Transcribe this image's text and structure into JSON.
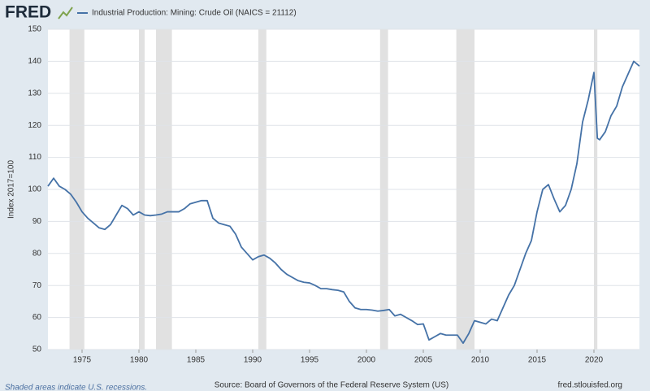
{
  "chart_data": {
    "type": "line",
    "logo": "FRED",
    "ylabel": "Index 2017=100",
    "note": "Shaded areas indicate U.S. recessions.",
    "source": "Source: Board of Governors of the Federal Reserve System (US)",
    "site": "fred.stlouisfed.org",
    "xlim": [
      1972,
      2024
    ],
    "xticks": [
      1975,
      1980,
      1985,
      1990,
      1995,
      2000,
      2005,
      2010,
      2015,
      2020
    ],
    "ylim": [
      50,
      150
    ],
    "yticks": [
      50,
      60,
      70,
      80,
      90,
      100,
      110,
      120,
      130,
      140,
      150
    ],
    "grid": true,
    "recessions": [
      [
        1973.9,
        1975.2
      ],
      [
        1980.0,
        1980.5
      ],
      [
        1981.5,
        1982.9
      ],
      [
        1990.5,
        1991.2
      ],
      [
        2001.2,
        2001.9
      ],
      [
        2007.9,
        2009.5
      ],
      [
        2020.0,
        2020.3
      ]
    ],
    "x": [
      1972.0,
      1972.5,
      1973.0,
      1973.5,
      1974.0,
      1974.5,
      1975.0,
      1975.5,
      1976.0,
      1976.5,
      1977.0,
      1977.5,
      1978.0,
      1978.5,
      1979.0,
      1979.5,
      1980.0,
      1980.5,
      1981.0,
      1981.5,
      1982.0,
      1982.5,
      1983.0,
      1983.5,
      1984.0,
      1984.5,
      1985.0,
      1985.5,
      1986.0,
      1986.5,
      1987.0,
      1987.5,
      1988.0,
      1988.5,
      1989.0,
      1989.5,
      1990.0,
      1990.5,
      1991.0,
      1991.5,
      1992.0,
      1992.5,
      1993.0,
      1993.5,
      1994.0,
      1994.5,
      1995.0,
      1995.5,
      1996.0,
      1996.5,
      1997.0,
      1997.5,
      1998.0,
      1998.5,
      1999.0,
      1999.5,
      2000.0,
      2000.5,
      2001.0,
      2001.5,
      2002.0,
      2002.5,
      2003.0,
      2003.5,
      2004.0,
      2004.5,
      2005.0,
      2005.5,
      2006.0,
      2006.5,
      2007.0,
      2007.5,
      2008.0,
      2008.5,
      2009.0,
      2009.5,
      2010.0,
      2010.5,
      2011.0,
      2011.5,
      2012.0,
      2012.5,
      2013.0,
      2013.5,
      2014.0,
      2014.5,
      2015.0,
      2015.5,
      2016.0,
      2016.5,
      2017.0,
      2017.5,
      2018.0,
      2018.5,
      2019.0,
      2019.5,
      2020.0,
      2020.3,
      2020.5,
      2021.0,
      2021.5,
      2022.0,
      2022.5,
      2023.0,
      2023.5,
      2024.0
    ],
    "series": [
      {
        "name": "Industrial Production: Mining: Crude Oil (NAICS = 21112)",
        "color": "#4572a7",
        "values": [
          101,
          103.5,
          101,
          100,
          98.5,
          96,
          93,
          91,
          89.5,
          88,
          87.5,
          89,
          92,
          95,
          94,
          92,
          93,
          92,
          91.8,
          92,
          92.3,
          93,
          93,
          93,
          94,
          95.5,
          96,
          96.5,
          96.5,
          91,
          89.5,
          89,
          88.5,
          86,
          82,
          80,
          78,
          79,
          79.5,
          78.5,
          77,
          75,
          73.5,
          72.5,
          71.5,
          71,
          70.8,
          70,
          69,
          69,
          68.7,
          68.5,
          68,
          65,
          63,
          62.5,
          62.5,
          62.3,
          62,
          62.2,
          62.5,
          60.5,
          61,
          60,
          59,
          57.8,
          58,
          53,
          54,
          55,
          54.5,
          54.5,
          54.5,
          52,
          55,
          59,
          58.5,
          58,
          59.5,
          59,
          63,
          67,
          70,
          75,
          80,
          84,
          93,
          100,
          101.5,
          97,
          93,
          95,
          100,
          108,
          121,
          128,
          136.5,
          116,
          115.5,
          118,
          123,
          126,
          132,
          136,
          140,
          138.5
        ]
      }
    ]
  }
}
